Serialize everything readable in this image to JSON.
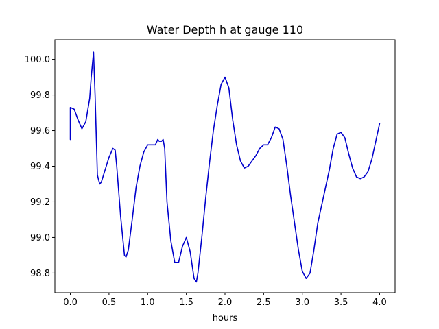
{
  "chart_data": {
    "type": "line",
    "title": "Water Depth h at gauge 110",
    "xlabel": "hours",
    "ylabel": "",
    "xlim": [
      -0.2,
      4.2
    ],
    "ylim": [
      98.69,
      100.11
    ],
    "xticks": [
      0.0,
      0.5,
      1.0,
      1.5,
      2.0,
      2.5,
      3.0,
      3.5,
      4.0
    ],
    "xtick_labels": [
      "0.0",
      "0.5",
      "1.0",
      "1.5",
      "2.0",
      "2.5",
      "3.0",
      "3.5",
      "4.0"
    ],
    "yticks": [
      98.8,
      99.0,
      99.2,
      99.4,
      99.6,
      99.8,
      100.0
    ],
    "ytick_labels": [
      "98.8",
      "99.0",
      "99.2",
      "99.4",
      "99.6",
      "99.8",
      "100.0"
    ],
    "grid": false,
    "legend": "none",
    "series": [
      {
        "color": "#0000cc",
        "x": [
          0.0,
          0.0,
          0.05,
          0.1,
          0.15,
          0.2,
          0.25,
          0.27,
          0.3,
          0.32,
          0.35,
          0.38,
          0.4,
          0.45,
          0.5,
          0.55,
          0.58,
          0.6,
          0.65,
          0.7,
          0.72,
          0.75,
          0.8,
          0.85,
          0.9,
          0.95,
          1.0,
          1.05,
          1.1,
          1.13,
          1.15,
          1.18,
          1.2,
          1.22,
          1.25,
          1.3,
          1.35,
          1.4,
          1.45,
          1.5,
          1.55,
          1.6,
          1.63,
          1.65,
          1.7,
          1.75,
          1.8,
          1.85,
          1.9,
          1.95,
          2.0,
          2.05,
          2.1,
          2.15,
          2.2,
          2.25,
          2.3,
          2.35,
          2.4,
          2.45,
          2.5,
          2.55,
          2.6,
          2.65,
          2.7,
          2.75,
          2.8,
          2.85,
          2.9,
          2.95,
          3.0,
          3.05,
          3.1,
          3.15,
          3.2,
          3.25,
          3.3,
          3.35,
          3.4,
          3.45,
          3.5,
          3.55,
          3.6,
          3.65,
          3.7,
          3.75,
          3.8,
          3.85,
          3.9,
          3.95,
          4.0
        ],
        "y": [
          99.55,
          99.73,
          99.72,
          99.66,
          99.61,
          99.65,
          99.78,
          99.9,
          100.04,
          99.8,
          99.35,
          99.3,
          99.31,
          99.38,
          99.45,
          99.5,
          99.49,
          99.4,
          99.12,
          98.9,
          98.89,
          98.93,
          99.1,
          99.28,
          99.4,
          99.48,
          99.52,
          99.52,
          99.52,
          99.55,
          99.54,
          99.54,
          99.55,
          99.5,
          99.2,
          98.98,
          98.86,
          98.86,
          98.95,
          99.0,
          98.92,
          98.77,
          98.75,
          98.8,
          99.0,
          99.22,
          99.42,
          99.6,
          99.74,
          99.86,
          99.9,
          99.84,
          99.66,
          99.52,
          99.43,
          99.39,
          99.4,
          99.43,
          99.46,
          99.5,
          99.52,
          99.52,
          99.56,
          99.62,
          99.61,
          99.55,
          99.4,
          99.23,
          99.08,
          98.93,
          98.81,
          98.77,
          98.8,
          98.93,
          99.08,
          99.18,
          99.28,
          99.38,
          99.5,
          99.58,
          99.59,
          99.56,
          99.47,
          99.39,
          99.34,
          99.33,
          99.34,
          99.37,
          99.44,
          99.54,
          99.64
        ]
      }
    ]
  }
}
